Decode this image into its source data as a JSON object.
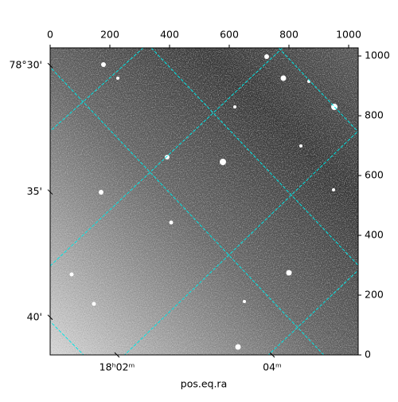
{
  "chart_data": {
    "type": "image",
    "xlabel": "pos.eq.ra",
    "xlim": [
      0,
      1032
    ],
    "xticks": [
      0,
      200,
      400,
      600,
      800,
      1000
    ],
    "ylim": [
      0,
      1027
    ],
    "yticks": [
      0,
      200,
      400,
      600,
      800,
      1000
    ],
    "y_world_ticks": [
      {
        "value": 968,
        "label": "78°30'"
      },
      {
        "value": 545,
        "label": "35'"
      },
      {
        "value": 126,
        "label": "40'"
      }
    ],
    "x_world_ticks": [
      {
        "value": 224,
        "label": "18ʰ02ᵐ"
      },
      {
        "value": 744,
        "label": "04ᵐ"
      }
    ],
    "grid_color": "#00e5e5"
  }
}
